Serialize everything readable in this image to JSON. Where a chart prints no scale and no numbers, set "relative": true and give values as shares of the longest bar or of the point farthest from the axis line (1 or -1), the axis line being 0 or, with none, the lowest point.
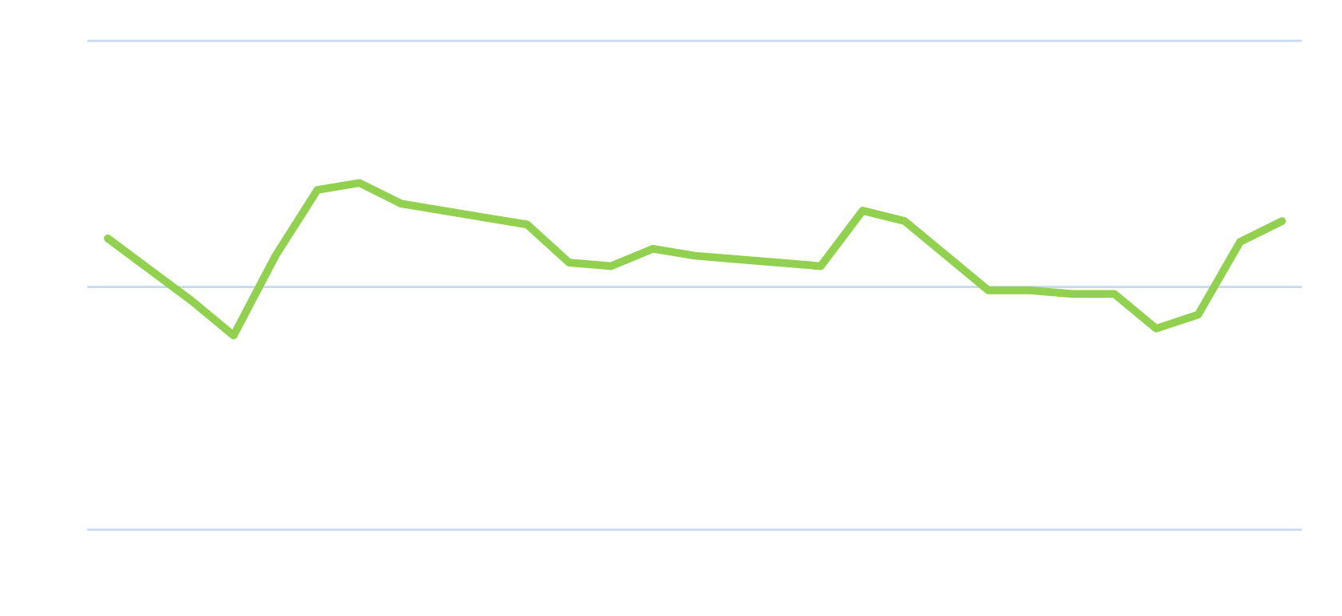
{
  "chart_data": {
    "type": "line",
    "relative": true,
    "ref_lines": [
      {
        "axis": "y",
        "value": 0,
        "color": "#c6d9f0"
      },
      {
        "axis": "y",
        "value": 0.7,
        "color": "#c6d9f0"
      },
      {
        "axis": "y",
        "value": 1.41,
        "color": "#c6d9f0"
      }
    ],
    "marker": "none",
    "line_style": "solid",
    "categories": [
      null,
      null,
      null,
      null,
      null,
      null,
      null,
      null,
      null,
      null,
      null,
      null,
      null,
      null,
      null,
      null,
      null,
      null,
      null,
      null,
      null,
      null,
      null,
      null,
      null,
      null,
      null,
      null,
      null
    ],
    "series": [
      {
        "color": "#92d050",
        "values": [
          0.84,
          0.75,
          0.66,
          0.56,
          0.79,
          0.98,
          1.0,
          0.94,
          0.92,
          0.9,
          0.88,
          0.77,
          0.76,
          0.81,
          0.79,
          0.78,
          0.77,
          0.76,
          0.92,
          0.89,
          0.79,
          0.69,
          0.69,
          0.68,
          0.68,
          0.58,
          0.62,
          0.83,
          0.89
        ]
      }
    ]
  }
}
